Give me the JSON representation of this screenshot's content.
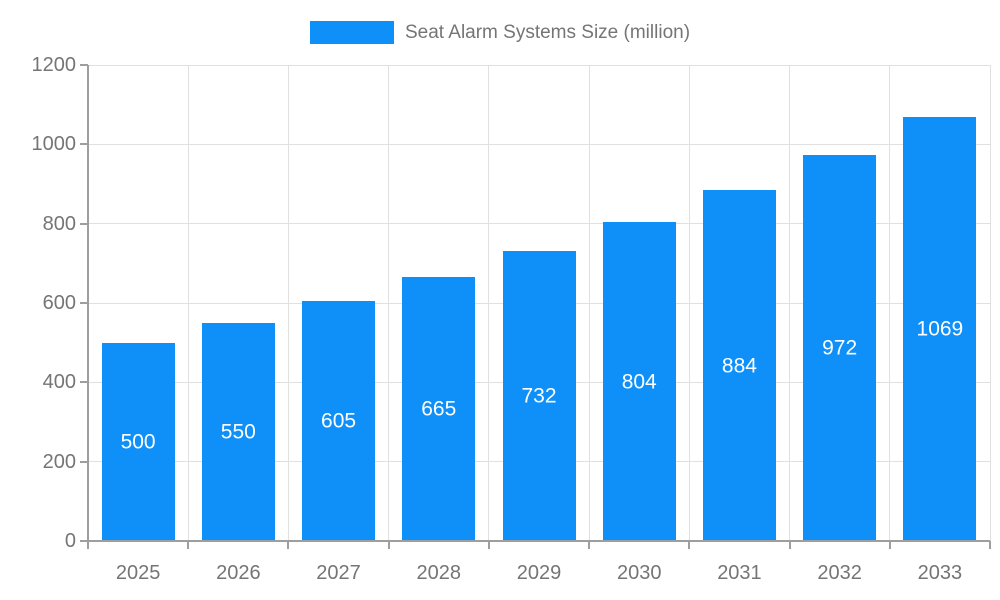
{
  "legend": {
    "label": "Seat Alarm Systems Size (million)"
  },
  "colors": {
    "bar": "#0e90f8",
    "axis": "#9e9e9e",
    "grid": "#e0e0e0",
    "tick_text": "#757575",
    "value_text": "#ffffff",
    "background": "#ffffff"
  },
  "chart_data": {
    "type": "bar",
    "title": "Seat Alarm Systems Size (million)",
    "categories": [
      "2025",
      "2026",
      "2027",
      "2028",
      "2029",
      "2030",
      "2031",
      "2032",
      "2033"
    ],
    "values": [
      500,
      550,
      605,
      665,
      732,
      804,
      884,
      972,
      1069
    ],
    "xlabel": "",
    "ylabel": "",
    "ylim": [
      0,
      1200
    ],
    "yticks": [
      0,
      200,
      400,
      600,
      800,
      1000,
      1200
    ],
    "grid": true,
    "legend_position": "top-center",
    "value_labels": "inside-center"
  }
}
